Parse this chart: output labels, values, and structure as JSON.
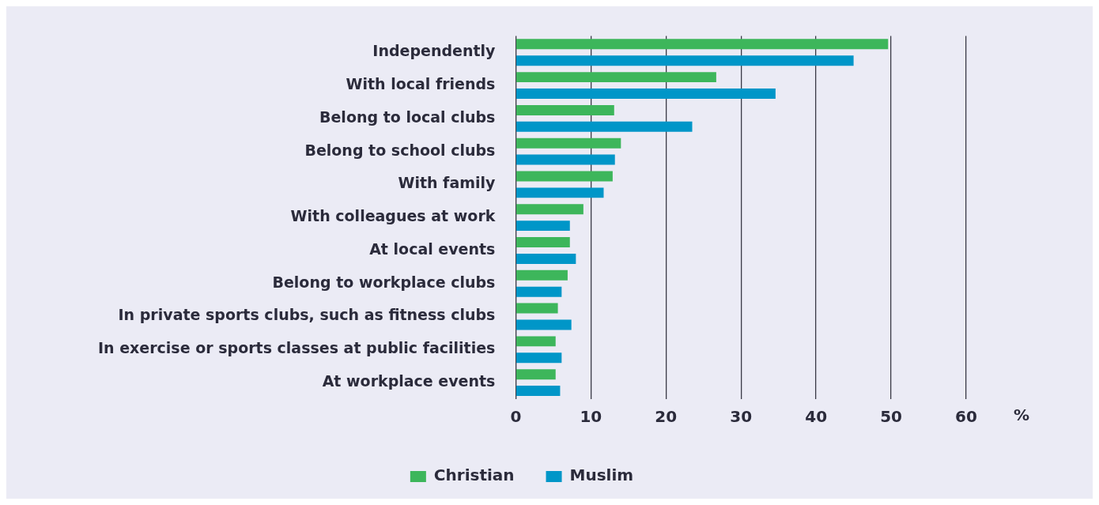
{
  "chart_data": {
    "type": "bar",
    "orientation": "horizontal",
    "xlabel": "%",
    "categories": [
      "Independently",
      "With local friends",
      "Belong to local clubs",
      "Belong to school clubs",
      "With family",
      "With colleagues at work",
      "At local events",
      "Belong to workplace clubs",
      "In private sports clubs, such as fitness clubs",
      "In exercise or sports classes at public facilities",
      "At workplace events"
    ],
    "series": [
      {
        "name": "Christian",
        "color": "#3db65b",
        "values": [
          49.6,
          26.7,
          13.1,
          14.0,
          12.9,
          9.0,
          7.2,
          6.9,
          5.6,
          5.3,
          5.3
        ]
      },
      {
        "name": "Muslim",
        "color": "#0096c8",
        "values": [
          45.0,
          34.6,
          23.5,
          13.2,
          11.7,
          7.2,
          8.0,
          6.1,
          7.4,
          6.1,
          5.9
        ]
      }
    ],
    "xlim": [
      0,
      60
    ],
    "xticks": [
      0,
      10,
      20,
      30,
      40,
      50,
      60
    ],
    "grid": "x",
    "legend": "bottom"
  }
}
